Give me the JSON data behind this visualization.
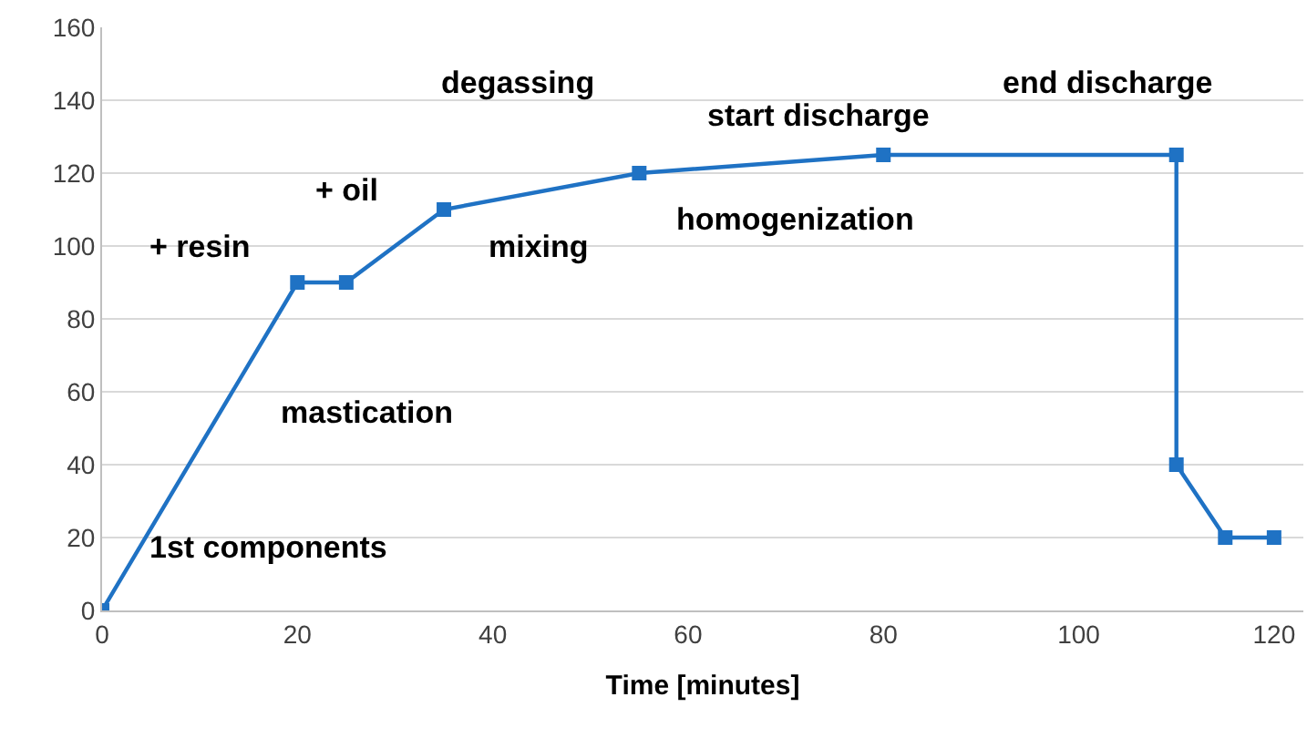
{
  "chart_data": {
    "type": "line",
    "xlabel": "Time [minutes]",
    "x": [
      0,
      20,
      25,
      35,
      55,
      80,
      110,
      110,
      115,
      120
    ],
    "series": [
      {
        "color": "#1f72c4",
        "values": [
          0,
          90,
          90,
          110,
          120,
          125,
          125,
          40,
          20,
          20
        ]
      }
    ],
    "xlim": [
      0,
      123
    ],
    "xticks": [
      0,
      20,
      40,
      60,
      80,
      100,
      120
    ],
    "ylim": [
      0,
      160
    ],
    "yticks": [
      0,
      20,
      40,
      60,
      80,
      100,
      120,
      140,
      160
    ],
    "grid": "y",
    "marker": "square",
    "line_style": "solid",
    "annotations": [
      "1st components",
      "mastication",
      "+ resin",
      "+ oil",
      "mixing",
      "degassing",
      "homogenization",
      "start discharge",
      "end discharge"
    ]
  }
}
